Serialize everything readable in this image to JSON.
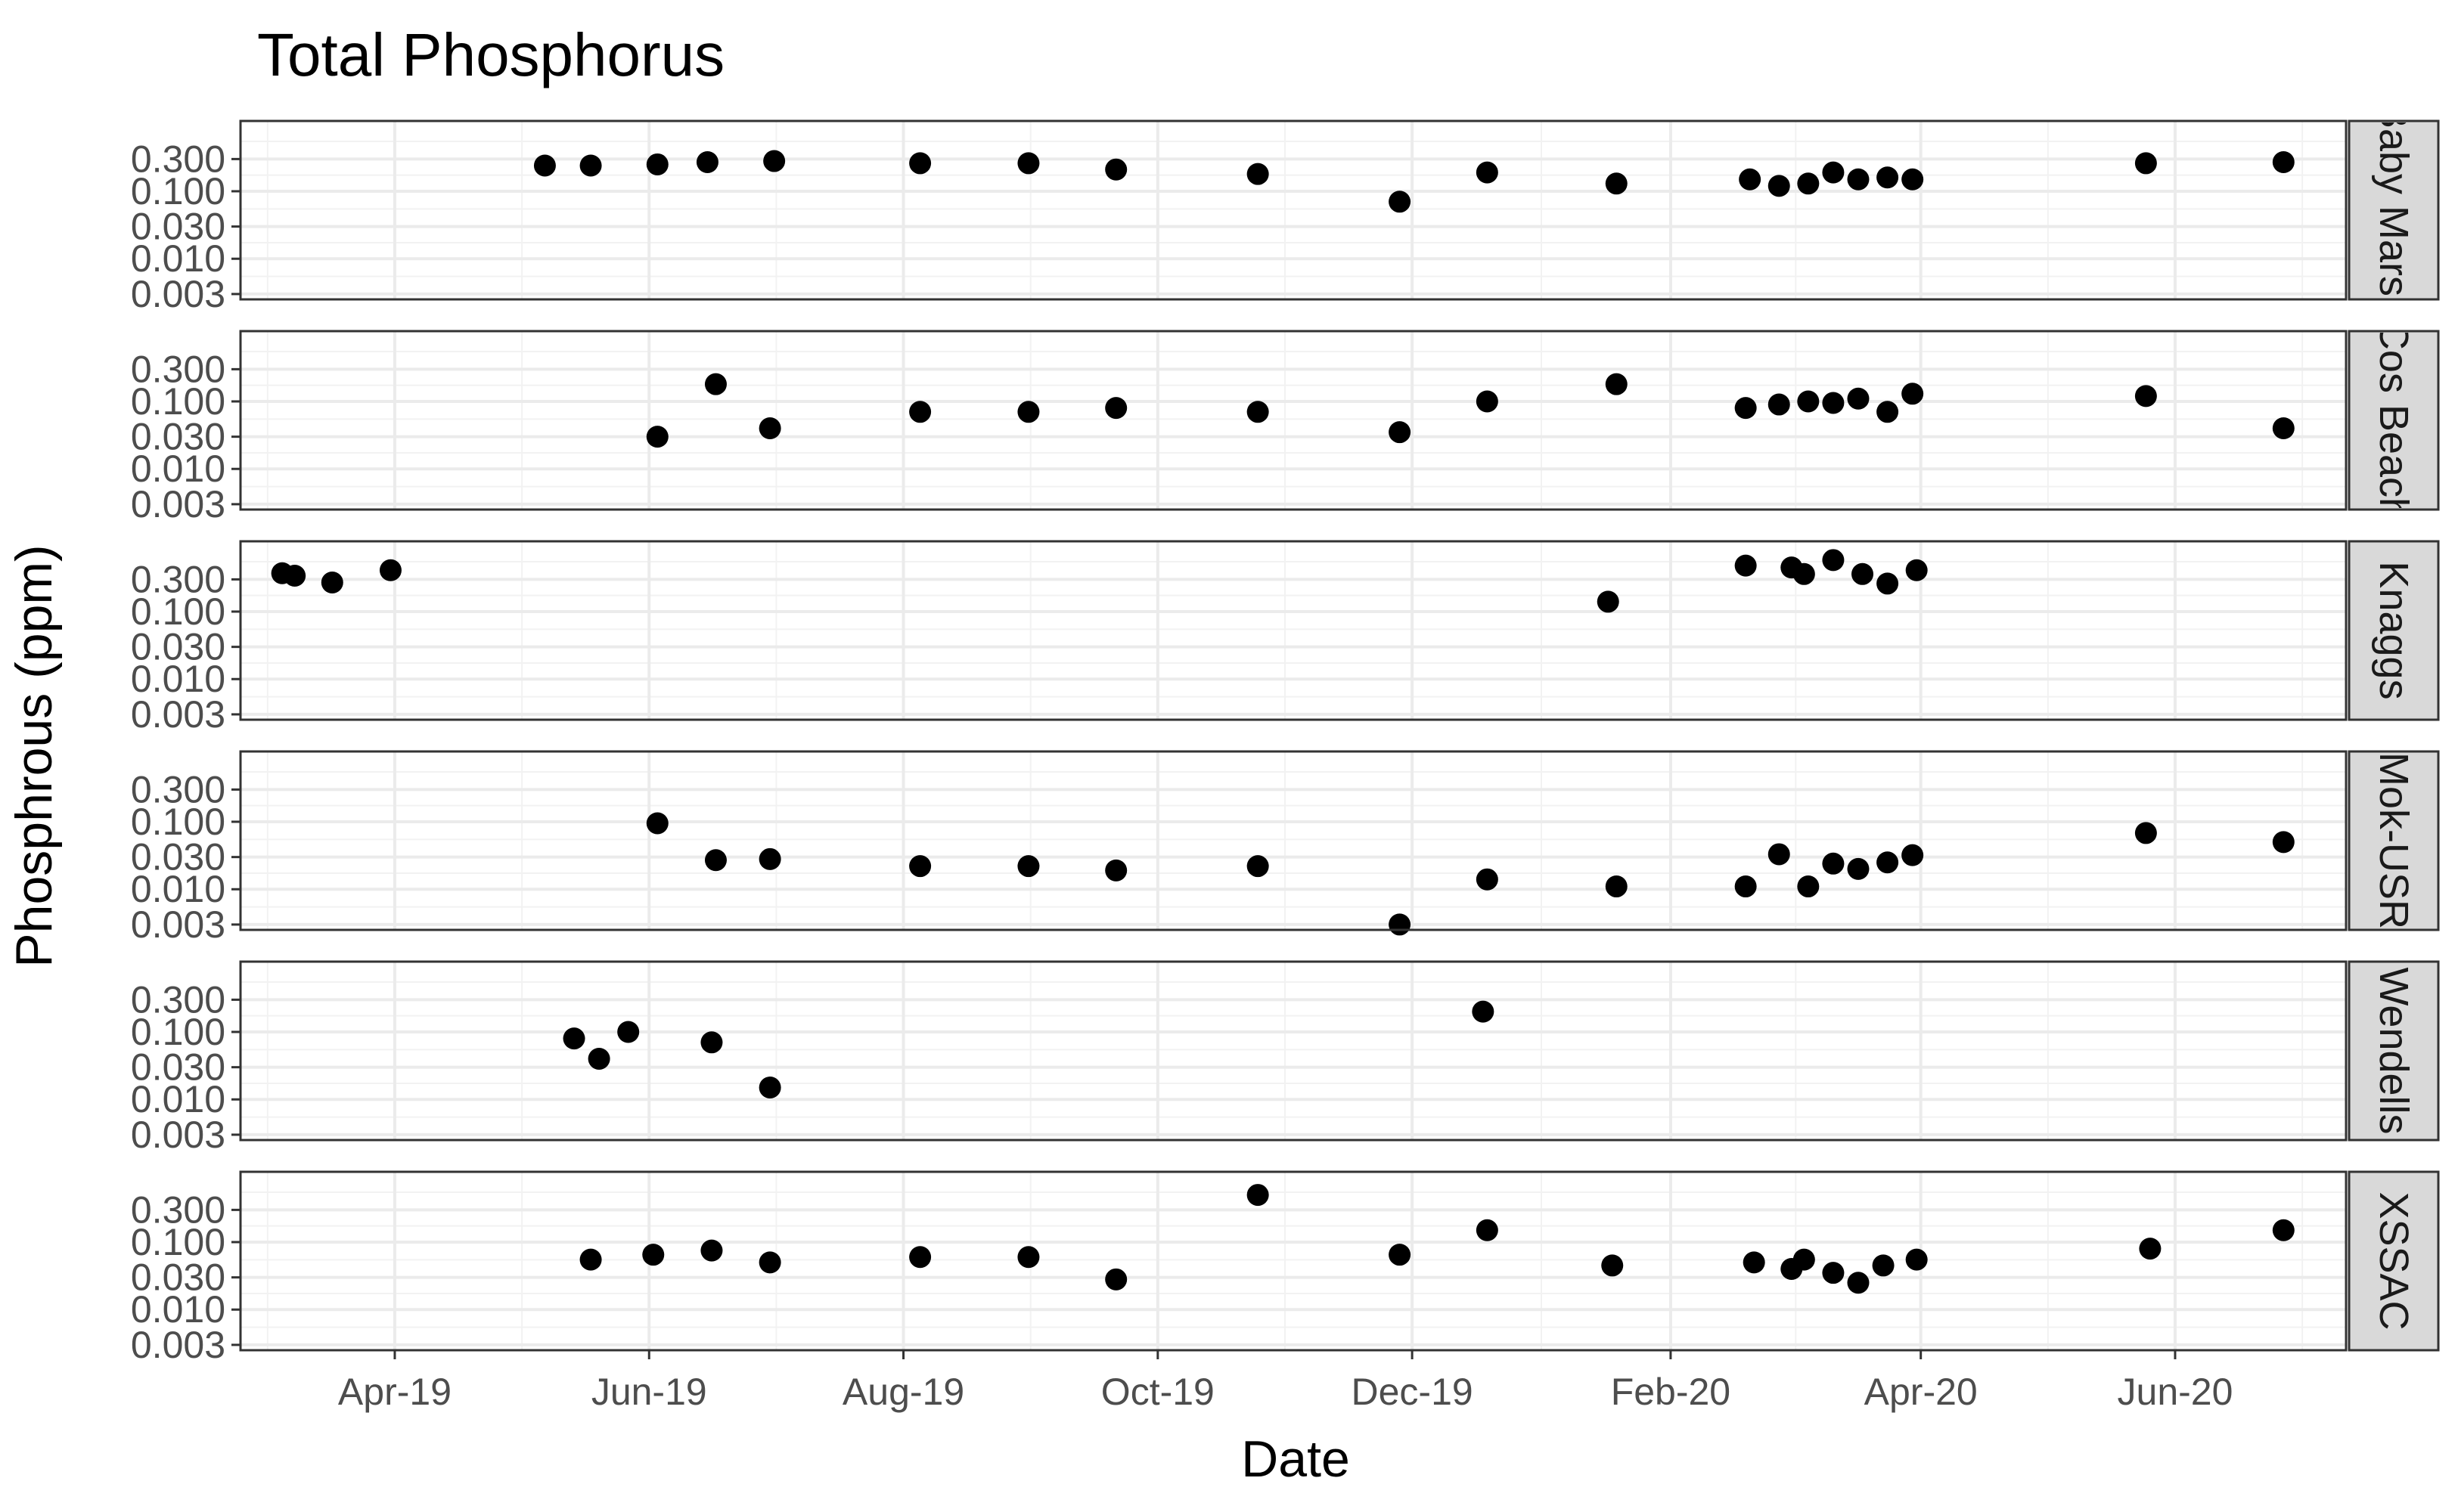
{
  "chart_data": {
    "type": "scatter",
    "title": "Total Phosphorus",
    "xlabel": "Date",
    "ylabel": "Phosphrous (ppm)",
    "x_scale": "date",
    "y_scale": "log10",
    "xlim": [
      "2019-02-23",
      "2020-07-12"
    ],
    "ylim": [
      0.0025,
      1.1
    ],
    "x_ticks": [
      {
        "date": "2019-04-01",
        "label": "Apr-19"
      },
      {
        "date": "2019-06-01",
        "label": "Jun-19"
      },
      {
        "date": "2019-08-01",
        "label": "Aug-19"
      },
      {
        "date": "2019-10-01",
        "label": "Oct-19"
      },
      {
        "date": "2019-12-01",
        "label": "Dec-19"
      },
      {
        "date": "2020-02-01",
        "label": "Feb-20"
      },
      {
        "date": "2020-04-01",
        "label": "Apr-20"
      },
      {
        "date": "2020-06-01",
        "label": "Jun-20"
      }
    ],
    "y_ticks": [
      {
        "value": 0.003,
        "label": "0.003"
      },
      {
        "value": 0.01,
        "label": "0.010"
      },
      {
        "value": 0.03,
        "label": "0.030"
      },
      {
        "value": 0.1,
        "label": "0.100"
      },
      {
        "value": 0.3,
        "label": "0.300"
      }
    ],
    "grid": true,
    "facet_strip_position": "right",
    "point_color": "#000000",
    "strip_fill": "#d9d9d9",
    "panels": [
      {
        "strip_label": "Baby Marsh",
        "points": [
          {
            "x": "2019-05-07",
            "y": 0.24
          },
          {
            "x": "2019-05-18",
            "y": 0.24
          },
          {
            "x": "2019-06-03",
            "y": 0.25
          },
          {
            "x": "2019-06-15",
            "y": 0.27
          },
          {
            "x": "2019-07-01",
            "y": 0.28
          },
          {
            "x": "2019-08-05",
            "y": 0.26
          },
          {
            "x": "2019-08-31",
            "y": 0.26
          },
          {
            "x": "2019-09-21",
            "y": 0.21
          },
          {
            "x": "2019-10-25",
            "y": 0.18
          },
          {
            "x": "2019-11-28",
            "y": 0.07
          },
          {
            "x": "2019-12-19",
            "y": 0.19
          },
          {
            "x": "2020-01-19",
            "y": 0.13
          },
          {
            "x": "2020-02-20",
            "y": 0.15
          },
          {
            "x": "2020-02-27",
            "y": 0.12
          },
          {
            "x": "2020-03-05",
            "y": 0.13
          },
          {
            "x": "2020-03-11",
            "y": 0.19
          },
          {
            "x": "2020-03-17",
            "y": 0.15
          },
          {
            "x": "2020-03-24",
            "y": 0.16
          },
          {
            "x": "2020-03-30",
            "y": 0.15
          },
          {
            "x": "2020-05-25",
            "y": 0.26
          },
          {
            "x": "2020-06-27",
            "y": 0.27
          }
        ]
      },
      {
        "strip_label": "Cos Beach",
        "points": [
          {
            "x": "2019-06-03",
            "y": 0.03
          },
          {
            "x": "2019-06-17",
            "y": 0.18
          },
          {
            "x": "2019-06-30",
            "y": 0.04
          },
          {
            "x": "2019-08-05",
            "y": 0.07
          },
          {
            "x": "2019-08-31",
            "y": 0.07
          },
          {
            "x": "2019-09-21",
            "y": 0.08
          },
          {
            "x": "2019-10-25",
            "y": 0.07
          },
          {
            "x": "2019-11-28",
            "y": 0.035
          },
          {
            "x": "2019-12-19",
            "y": 0.1
          },
          {
            "x": "2020-01-19",
            "y": 0.18
          },
          {
            "x": "2020-02-19",
            "y": 0.08
          },
          {
            "x": "2020-02-27",
            "y": 0.09
          },
          {
            "x": "2020-03-05",
            "y": 0.1
          },
          {
            "x": "2020-03-11",
            "y": 0.095
          },
          {
            "x": "2020-03-17",
            "y": 0.11
          },
          {
            "x": "2020-03-24",
            "y": 0.07
          },
          {
            "x": "2020-03-30",
            "y": 0.13
          },
          {
            "x": "2020-05-25",
            "y": 0.12
          },
          {
            "x": "2020-06-27",
            "y": 0.04
          }
        ]
      },
      {
        "strip_label": "Knaggs",
        "points": [
          {
            "x": "2019-03-05",
            "y": 0.37
          },
          {
            "x": "2019-03-08",
            "y": 0.34
          },
          {
            "x": "2019-03-17",
            "y": 0.27
          },
          {
            "x": "2019-03-31",
            "y": 0.41
          },
          {
            "x": "2020-01-17",
            "y": 0.14
          },
          {
            "x": "2020-02-19",
            "y": 0.48
          },
          {
            "x": "2020-03-01",
            "y": 0.45
          },
          {
            "x": "2020-03-04",
            "y": 0.36
          },
          {
            "x": "2020-03-11",
            "y": 0.58
          },
          {
            "x": "2020-03-18",
            "y": 0.36
          },
          {
            "x": "2020-03-24",
            "y": 0.26
          },
          {
            "x": "2020-03-31",
            "y": 0.41
          }
        ]
      },
      {
        "strip_label": "Mok-USR",
        "points": [
          {
            "x": "2019-06-03",
            "y": 0.095
          },
          {
            "x": "2019-06-17",
            "y": 0.027
          },
          {
            "x": "2019-06-30",
            "y": 0.028
          },
          {
            "x": "2019-08-05",
            "y": 0.022
          },
          {
            "x": "2019-08-31",
            "y": 0.022
          },
          {
            "x": "2019-09-21",
            "y": 0.019
          },
          {
            "x": "2019-10-25",
            "y": 0.022
          },
          {
            "x": "2019-11-28",
            "y": 0.003
          },
          {
            "x": "2019-12-19",
            "y": 0.014
          },
          {
            "x": "2020-01-19",
            "y": 0.011
          },
          {
            "x": "2020-02-19",
            "y": 0.011
          },
          {
            "x": "2020-02-27",
            "y": 0.033
          },
          {
            "x": "2020-03-05",
            "y": 0.011
          },
          {
            "x": "2020-03-11",
            "y": 0.024
          },
          {
            "x": "2020-03-17",
            "y": 0.02
          },
          {
            "x": "2020-03-24",
            "y": 0.025
          },
          {
            "x": "2020-03-30",
            "y": 0.032
          },
          {
            "x": "2020-05-25",
            "y": 0.068
          },
          {
            "x": "2020-06-27",
            "y": 0.05
          }
        ]
      },
      {
        "strip_label": "Wendells",
        "points": [
          {
            "x": "2019-05-14",
            "y": 0.08
          },
          {
            "x": "2019-05-20",
            "y": 0.04
          },
          {
            "x": "2019-05-27",
            "y": 0.1
          },
          {
            "x": "2019-06-16",
            "y": 0.07
          },
          {
            "x": "2019-06-30",
            "y": 0.015
          },
          {
            "x": "2019-12-18",
            "y": 0.2
          }
        ]
      },
      {
        "strip_label": "XSSAC",
        "points": [
          {
            "x": "2019-05-18",
            "y": 0.055
          },
          {
            "x": "2019-06-02",
            "y": 0.065
          },
          {
            "x": "2019-06-16",
            "y": 0.075
          },
          {
            "x": "2019-06-30",
            "y": 0.05
          },
          {
            "x": "2019-08-05",
            "y": 0.06
          },
          {
            "x": "2019-08-31",
            "y": 0.06
          },
          {
            "x": "2019-09-21",
            "y": 0.028
          },
          {
            "x": "2019-10-25",
            "y": 0.5
          },
          {
            "x": "2019-11-28",
            "y": 0.065
          },
          {
            "x": "2019-12-19",
            "y": 0.15
          },
          {
            "x": "2020-01-18",
            "y": 0.045
          },
          {
            "x": "2020-02-21",
            "y": 0.05
          },
          {
            "x": "2020-03-01",
            "y": 0.04
          },
          {
            "x": "2020-03-04",
            "y": 0.055
          },
          {
            "x": "2020-03-11",
            "y": 0.035
          },
          {
            "x": "2020-03-17",
            "y": 0.025
          },
          {
            "x": "2020-03-23",
            "y": 0.045
          },
          {
            "x": "2020-03-31",
            "y": 0.055
          },
          {
            "x": "2020-05-26",
            "y": 0.08
          },
          {
            "x": "2020-06-27",
            "y": 0.15
          }
        ]
      }
    ]
  }
}
